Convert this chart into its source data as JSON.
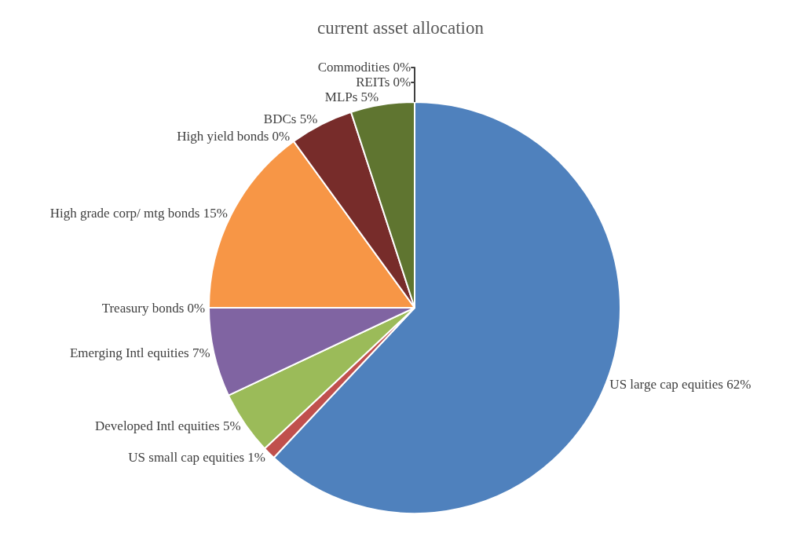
{
  "chart_data": {
    "type": "pie",
    "title": "current asset allocation",
    "categories": [
      "US large cap equities",
      "US small cap equities",
      "Developed Intl equities",
      "Emerging Intl equities",
      "Treasury bonds",
      "High grade corp/ mtg bonds",
      "High yield bonds",
      "BDCs",
      "MLPs",
      "REITs",
      "Commodities"
    ],
    "values": [
      62,
      1,
      5,
      7,
      0,
      15,
      0,
      5,
      5,
      0,
      0
    ],
    "value_labels": [
      "62%",
      "1%",
      "5%",
      "7%",
      "0%",
      "15%",
      "0%",
      "5%",
      "5%",
      "0%",
      "0%"
    ],
    "colors": [
      "#4f81bd",
      "#c0504d",
      "#9bbb59",
      "#8064a2",
      "#4bacc6",
      "#f79646",
      "#2c4d75",
      "#772c2a",
      "#5f7530",
      "#4d3b62",
      "#276a7c"
    ]
  }
}
